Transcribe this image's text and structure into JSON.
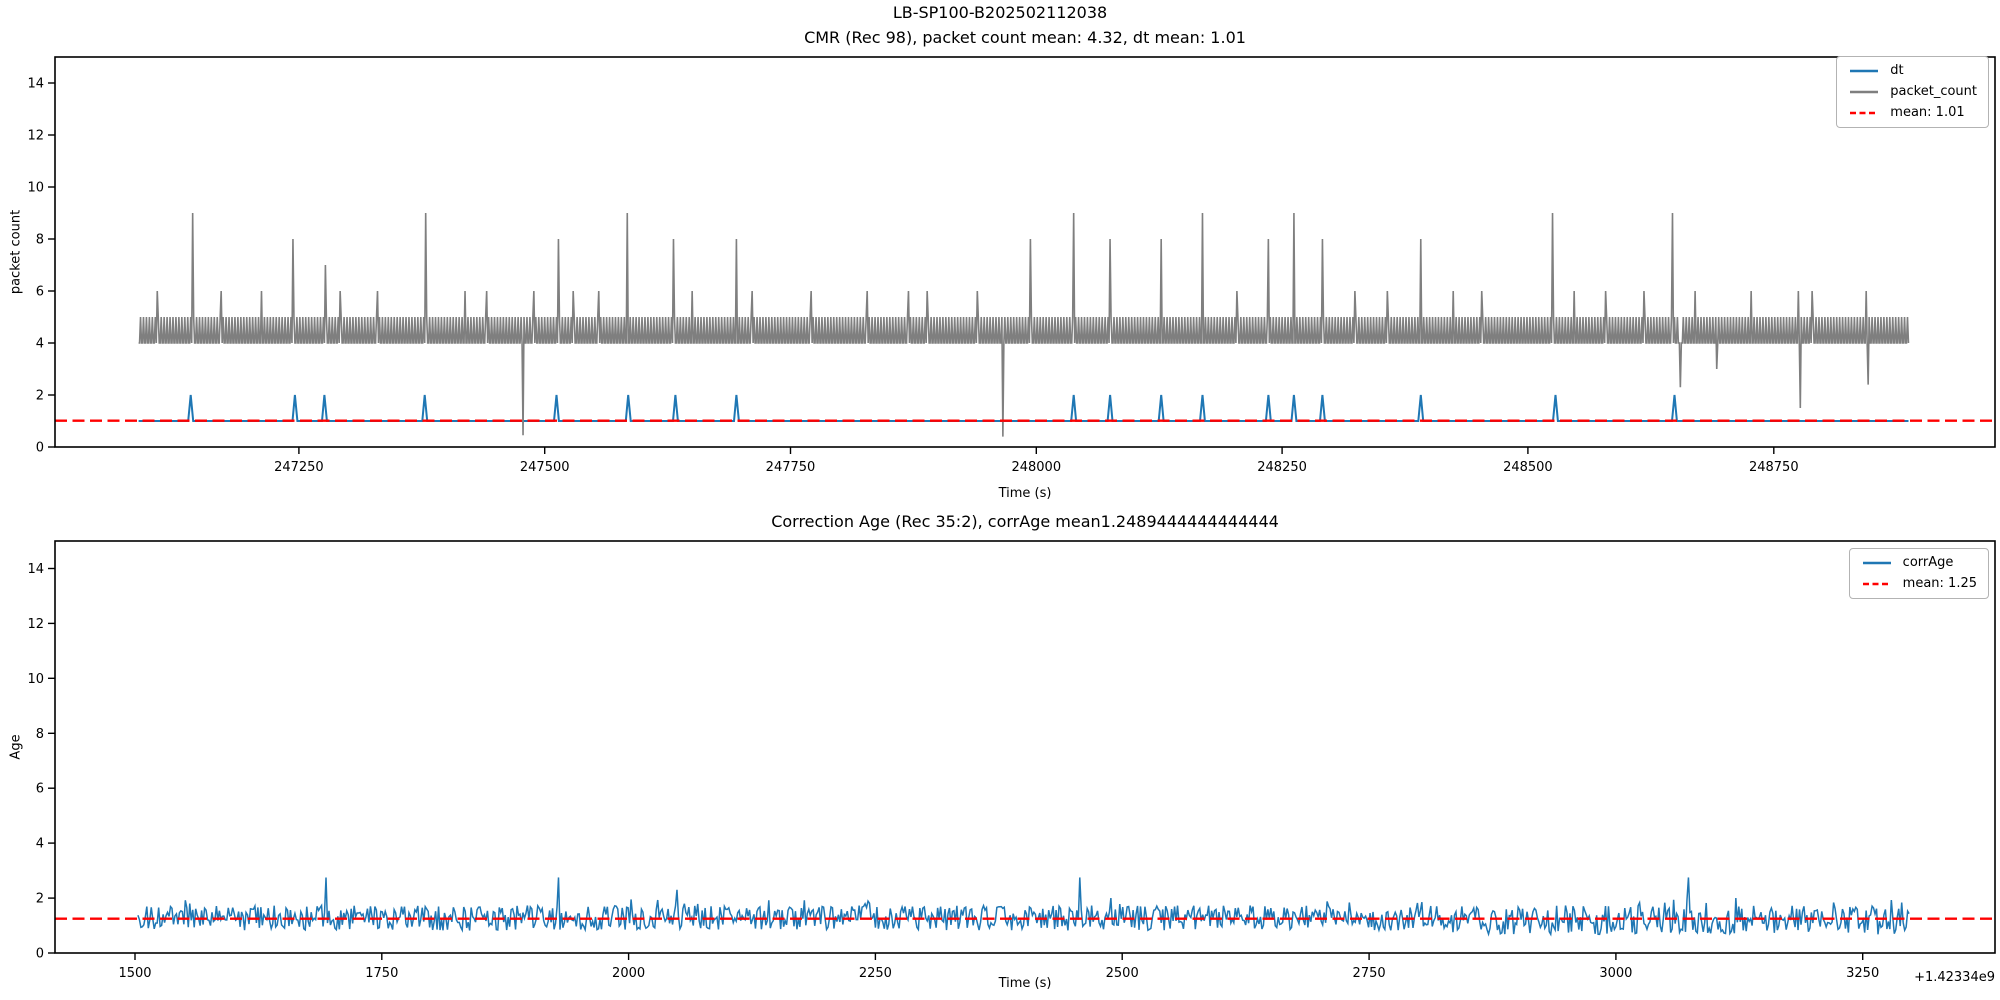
{
  "figure": {
    "suptitle": "LB-SP100-B202502112038",
    "background": "#ffffff"
  },
  "colors": {
    "blue": "#1f77b4",
    "gray": "#7f7f7f",
    "red": "#ff0000",
    "spine": "#000000",
    "legend_border": "#b3b3b3"
  },
  "chart_data": [
    {
      "type": "line",
      "title": "CMR (Rec 98), packet count mean: 4.32, dt mean: 1.01",
      "xlabel": "Time (s)",
      "ylabel": "packet count",
      "xlim": [
        247002,
        248975
      ],
      "ylim": [
        0,
        15
      ],
      "xticks": [
        247250,
        247500,
        247750,
        248000,
        248250,
        248500,
        248750
      ],
      "xtick_labels": [
        "247250",
        "247500",
        "247750",
        "248000",
        "248250",
        "248500",
        "248750"
      ],
      "yticks": [
        0,
        2,
        4,
        6,
        8,
        10,
        12,
        14
      ],
      "ytick_labels": [
        "0",
        "2",
        "4",
        "6",
        "8",
        "10",
        "12",
        "14"
      ],
      "grid": false,
      "legend_position": "upper right",
      "legend": [
        {
          "label": "dt",
          "color": "#1f77b4",
          "dash": false
        },
        {
          "label": "packet_count",
          "color": "#7f7f7f",
          "dash": false
        },
        {
          "label": "mean: 1.01",
          "color": "#ff0000",
          "dash": true
        }
      ],
      "mean_value": 1.01,
      "packet_count_mean": 4.32,
      "dt_mean": 1.01,
      "series": [
        {
          "name": "dt",
          "color": "#1f77b4",
          "t_start": 247087,
          "t_end": 248887,
          "baseline": 1,
          "spike_value": 2,
          "spikes_t": [
            247140,
            247246,
            247276,
            247378,
            247512,
            247585,
            247633,
            247695,
            248038,
            248075,
            248127,
            248169,
            248236,
            248262,
            248291,
            248391,
            248528,
            248649
          ]
        },
        {
          "name": "packet_count",
          "color": "#7f7f7f",
          "t_start": 247087,
          "t_end": 248887,
          "comb_pattern": [
            4,
            4,
            5
          ],
          "up_spikes": [
            [
              247106,
              6
            ],
            [
              247142,
              9
            ],
            [
              247171,
              6
            ],
            [
              247212,
              6
            ],
            [
              247244,
              8
            ],
            [
              247277,
              7
            ],
            [
              247292,
              6
            ],
            [
              247330,
              6
            ],
            [
              247379,
              9
            ],
            [
              247419,
              6
            ],
            [
              247441,
              6
            ],
            [
              247489,
              6
            ],
            [
              247514,
              8
            ],
            [
              247529,
              6
            ],
            [
              247555,
              6
            ],
            [
              247584,
              9
            ],
            [
              247631,
              8
            ],
            [
              247650,
              6
            ],
            [
              247695,
              8
            ],
            [
              247711,
              6
            ],
            [
              247771,
              6
            ],
            [
              247828,
              6
            ],
            [
              247870,
              6
            ],
            [
              247889,
              6
            ],
            [
              247940,
              6
            ],
            [
              247994,
              8
            ],
            [
              248038,
              9
            ],
            [
              248075,
              8
            ],
            [
              248127,
              8
            ],
            [
              248169,
              9
            ],
            [
              248204,
              6
            ],
            [
              248236,
              8
            ],
            [
              248262,
              9
            ],
            [
              248291,
              8
            ],
            [
              248324,
              6
            ],
            [
              248357,
              6
            ],
            [
              248391,
              8
            ],
            [
              248424,
              6
            ],
            [
              248453,
              6
            ],
            [
              248525,
              9
            ],
            [
              248547,
              6
            ],
            [
              248579,
              6
            ],
            [
              248618,
              6
            ],
            [
              248647,
              9
            ],
            [
              248670,
              6
            ],
            [
              248727,
              6
            ],
            [
              248775,
              6
            ],
            [
              248789,
              6
            ],
            [
              248844,
              6
            ]
          ],
          "down_spikes": [
            [
              247478,
              0.45
            ],
            [
              247966,
              0.4
            ],
            [
              248655,
              2.3
            ],
            [
              248692,
              3.0
            ],
            [
              248777,
              1.5
            ],
            [
              248846,
              2.4
            ]
          ]
        }
      ]
    },
    {
      "type": "line",
      "title": "Correction Age (Rec 35:2), corrAge mean1.2489444444444444",
      "xlabel": "Time (s)",
      "ylabel": "Age",
      "x_offset_label": "+1.42334e9",
      "xlim": [
        1419,
        3384
      ],
      "ylim": [
        0,
        15
      ],
      "xticks": [
        1500,
        1750,
        2000,
        2250,
        2500,
        2750,
        3000,
        3250
      ],
      "xtick_labels": [
        "1500",
        "1750",
        "2000",
        "2250",
        "2500",
        "2750",
        "3000",
        "3250"
      ],
      "yticks": [
        0,
        2,
        4,
        6,
        8,
        10,
        12,
        14
      ],
      "ytick_labels": [
        "0",
        "2",
        "4",
        "6",
        "8",
        "10",
        "12",
        "14"
      ],
      "grid": false,
      "legend_position": "upper right",
      "legend": [
        {
          "label": "corrAge",
          "color": "#1f77b4",
          "dash": false
        },
        {
          "label": "mean: 1.25",
          "color": "#ff0000",
          "dash": true
        }
      ],
      "mean_value": 1.25,
      "corrAge_mean": 1.2489444444444444,
      "series": [
        {
          "name": "corrAge",
          "color": "#1f77b4",
          "t_start": 1503,
          "t_end": 3297,
          "band_low": 0.82,
          "band_high": 1.73,
          "spikes": [
            [
              1693,
              2.75
            ],
            [
              1929,
              2.75
            ],
            [
              2003,
              1.95
            ],
            [
              2049,
              2.3
            ],
            [
              2457,
              2.75
            ],
            [
              2489,
              2.0
            ],
            [
              3073,
              2.75
            ],
            [
              3121,
              2.0
            ]
          ],
          "fuzz_start": 2815,
          "fuzz_end": 3297,
          "fuzz_low": 0.68
        }
      ]
    }
  ]
}
